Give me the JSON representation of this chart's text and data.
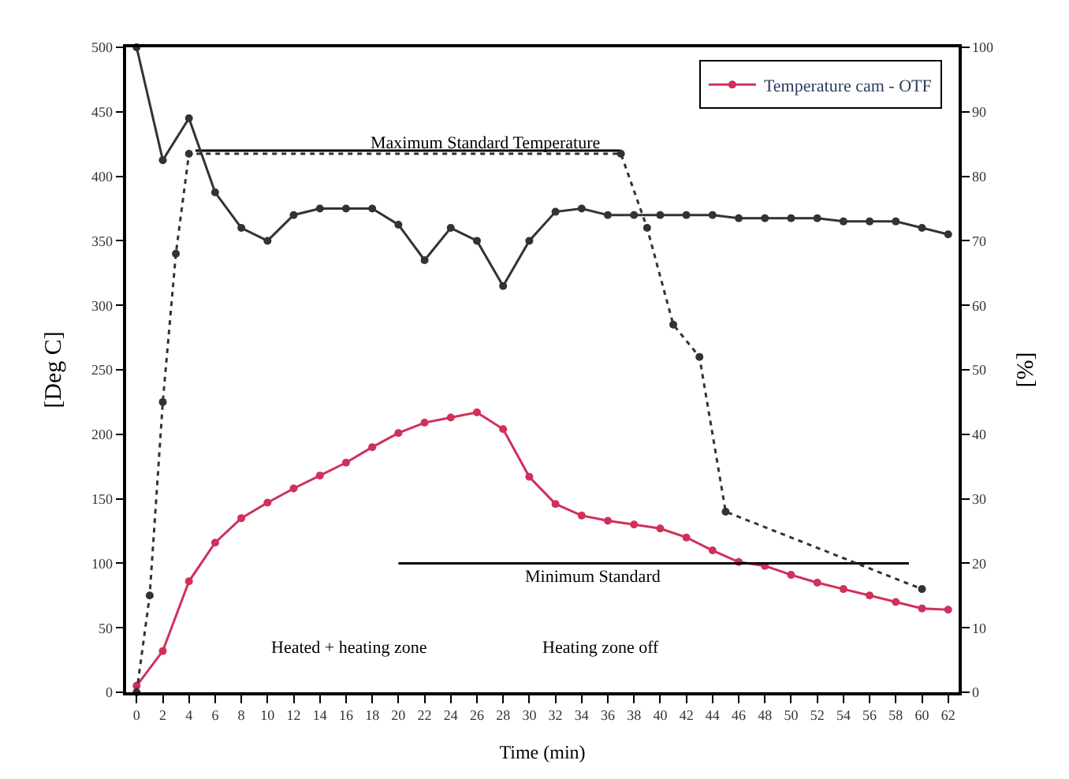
{
  "chart_data": {
    "type": "line",
    "xlabel": "Time (min)",
    "ylabel": "[Deg C]",
    "y2label": "[%]",
    "x": [
      0,
      2,
      4,
      6,
      8,
      10,
      12,
      14,
      16,
      18,
      20,
      22,
      24,
      26,
      28,
      30,
      32,
      34,
      36,
      38,
      40,
      42,
      44,
      46,
      48,
      50,
      52,
      54,
      56,
      58,
      60,
      62
    ],
    "series": [
      {
        "name": "Temperature cam - OTF",
        "color": "#d0305a",
        "marker": "circle",
        "line_style": "solid",
        "values": [
          5,
          32,
          86,
          116,
          135,
          147,
          158,
          168,
          178,
          190,
          201,
          209,
          213,
          217,
          204,
          167,
          146,
          137,
          133,
          130,
          127,
          120,
          110,
          101,
          98,
          91,
          85,
          80,
          75,
          70,
          65,
          64
        ]
      },
      {
        "color": "#333333",
        "marker": "circle",
        "line_style": "solid",
        "axis": "y2",
        "values": [
          100,
          82.5,
          89,
          77.5,
          72,
          70,
          74,
          75,
          75,
          75,
          72.5,
          67,
          72,
          70,
          63,
          70,
          74.5,
          75,
          74,
          74,
          74,
          74,
          74,
          73.5,
          73.5,
          73.5,
          73.5,
          73,
          73,
          73,
          72,
          71
        ]
      },
      {
        "color": "#333333",
        "marker": "circle",
        "line_style": "dotted",
        "axis": "y2",
        "x": [
          0,
          1,
          2,
          3,
          4,
          37,
          39,
          41,
          43,
          45,
          60
        ],
        "values": [
          0,
          15,
          45,
          68,
          83.5,
          83.5,
          72,
          57,
          52,
          28,
          16
        ]
      },
      {
        "color": "#000000",
        "marker": "none",
        "line_style": "solid",
        "x": [
          4.5,
          37
        ],
        "values": [
          420,
          420
        ]
      },
      {
        "color": "#000000",
        "marker": "none",
        "line_style": "solid",
        "x": [
          20,
          59
        ],
        "values": [
          100,
          100
        ]
      }
    ],
    "xlim": [
      -0.8,
      62.8
    ],
    "xticks": [
      0,
      2,
      4,
      6,
      8,
      10,
      12,
      14,
      16,
      18,
      20,
      22,
      24,
      26,
      28,
      30,
      32,
      34,
      36,
      38,
      40,
      42,
      44,
      46,
      48,
      50,
      52,
      54,
      56,
      58,
      60,
      62
    ],
    "ylim": [
      0,
      500
    ],
    "yticks": [
      0,
      50,
      100,
      150,
      200,
      250,
      300,
      350,
      400,
      450,
      500
    ],
    "y2lim": [
      0,
      100
    ],
    "y2ticks": [
      0,
      10,
      20,
      30,
      40,
      50,
      60,
      70,
      80,
      90,
      100
    ],
    "annotations": [
      "Maximum Standard Temperature",
      "Minimum Standard",
      "Heated + heating zone",
      "Heating zone off"
    ],
    "legend": "top right"
  }
}
